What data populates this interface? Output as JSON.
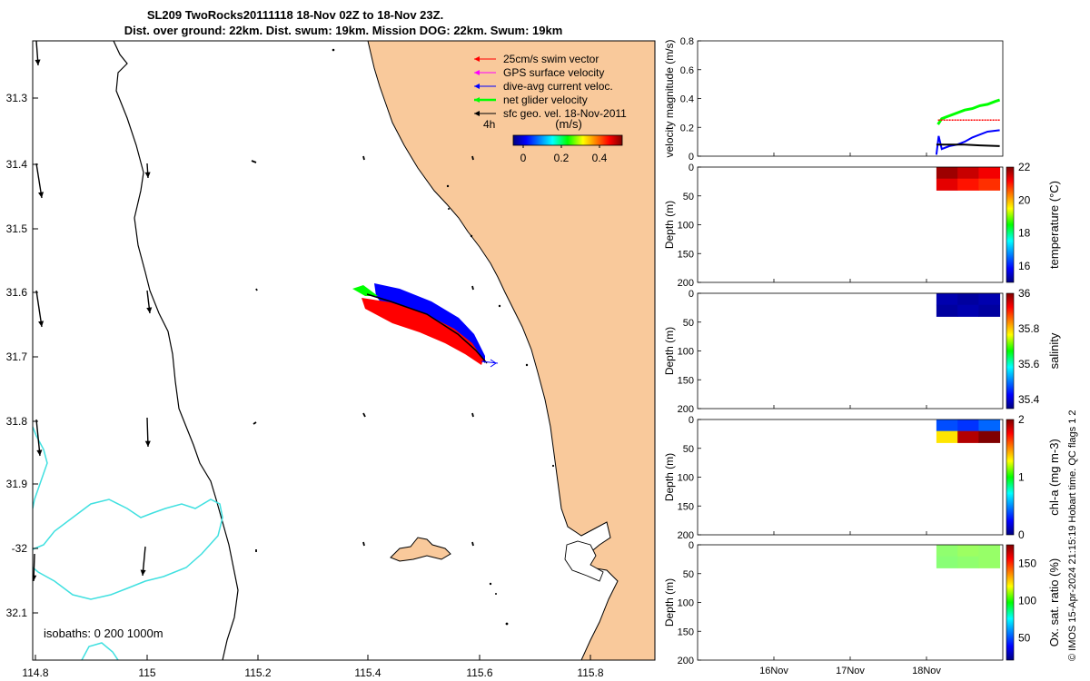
{
  "title": {
    "line1": "SL209 TwoRocks20111118 18-Nov 02Z to 18-Nov 23Z.",
    "line2": "Dist. over ground: 22km. Dist. swum: 19km. Mission DOG: 22km. Swum: 19km"
  },
  "map": {
    "lon_ticks": [
      "114.8",
      "115",
      "115.2",
      "115.4",
      "115.6",
      "115.8"
    ],
    "lat_ticks": [
      "31.3",
      "31.4",
      "31.5",
      "31.6",
      "31.7",
      "31.8",
      "31.9",
      "-32",
      "32.1"
    ],
    "legend": [
      {
        "label": "25cm/s swim vector",
        "color": "#ff0000"
      },
      {
        "label": "GPS surface velocity",
        "color": "#ff00ff"
      },
      {
        "label": "dive-avg current veloc.",
        "color": "#0000ff"
      },
      {
        "label": "net glider velocity",
        "color": "#00ff00"
      },
      {
        "label": "sfc geo. vel. 18-Nov-2011",
        "color": "#000000"
      }
    ],
    "colorbar_prefix": "4h",
    "colorbar_label": "(m/s)",
    "colorbar_ticks": [
      "0",
      "0.2",
      "0.4"
    ],
    "isobaths_label": "isobaths: 0   200  1000m",
    "land_color": "#f9c99b",
    "isobath_200_color": "#000000",
    "isobath_1000_color": "#40e0e0"
  },
  "chart_data": [
    {
      "type": "line",
      "ylabel": "velocity magnitude (m/s)",
      "ylim": [
        0,
        0.8
      ],
      "yticks": [
        "0",
        "0.2",
        "0.4",
        "0.6",
        "0.8"
      ],
      "xticks": [
        "16Nov",
        "17Nov",
        "18Nov"
      ],
      "x_days": [
        15,
        16,
        17,
        18,
        19
      ],
      "series": [
        {
          "color": "#00ff00",
          "x": [
            18.15,
            18.2,
            18.3,
            18.4,
            18.5,
            18.6,
            18.7,
            18.8,
            18.9,
            18.96
          ],
          "y": [
            0.22,
            0.26,
            0.28,
            0.3,
            0.32,
            0.33,
            0.35,
            0.36,
            0.38,
            0.39
          ]
        },
        {
          "color": "#ff0000",
          "x": [
            18.15,
            18.96
          ],
          "y": [
            0.25,
            0.25
          ]
        },
        {
          "color": "#0000ff",
          "x": [
            18.13,
            18.16,
            18.2,
            18.3,
            18.4,
            18.5,
            18.6,
            18.7,
            18.8,
            18.96
          ],
          "y": [
            0.01,
            0.14,
            0.05,
            0.07,
            0.08,
            0.1,
            0.13,
            0.15,
            0.17,
            0.18
          ]
        },
        {
          "color": "#000000",
          "x": [
            18.13,
            18.3,
            18.5,
            18.7,
            18.96
          ],
          "y": [
            0.08,
            0.08,
            0.08,
            0.075,
            0.07
          ]
        }
      ]
    },
    {
      "type": "heatmap",
      "ylabel": "Depth (m)",
      "ylim": [
        0,
        200
      ],
      "yticks": [
        "0",
        "50",
        "100",
        "150",
        "200"
      ],
      "cbar_label": "temperature (°C)",
      "cbar_ticks": [
        "16",
        "18",
        "20",
        "22"
      ],
      "crange": [
        15,
        22
      ],
      "values": [
        [
          21.8,
          21.5,
          21.2
        ],
        [
          21.3,
          21.0,
          20.8
        ]
      ],
      "depth_range": [
        0,
        40
      ],
      "time_range": [
        18.13,
        18.96
      ]
    },
    {
      "type": "heatmap",
      "ylabel": "Depth (m)",
      "ylim": [
        0,
        200
      ],
      "yticks": [
        "0",
        "50",
        "100",
        "150",
        "200"
      ],
      "cbar_label": "salinity",
      "cbar_ticks": [
        "35.4",
        "35.6",
        "35.8",
        "36"
      ],
      "crange": [
        35.35,
        36.0
      ],
      "values": [
        [
          35.38,
          35.37,
          35.38
        ],
        [
          35.37,
          35.38,
          35.37
        ]
      ],
      "depth_range": [
        0,
        40
      ],
      "time_range": [
        18.13,
        18.96
      ]
    },
    {
      "type": "heatmap",
      "ylabel": "Depth (m)",
      "ylim": [
        0,
        200
      ],
      "yticks": [
        "0",
        "50",
        "100",
        "150",
        "200"
      ],
      "cbar_label": "chl-a (mg m-3)",
      "cbar_ticks": [
        "0",
        "1",
        "2"
      ],
      "crange": [
        0,
        2
      ],
      "values": [
        [
          0.4,
          0.35,
          0.45
        ],
        [
          1.3,
          1.9,
          2.0
        ]
      ],
      "depth_range": [
        0,
        40
      ],
      "time_range": [
        18.13,
        18.96
      ]
    },
    {
      "type": "heatmap",
      "ylabel": "Depth (m)",
      "ylim": [
        0,
        200
      ],
      "yticks": [
        "0",
        "50",
        "100",
        "150",
        "200"
      ],
      "cbar_label": "Ox. sat. ratio (%)",
      "cbar_ticks": [
        "50",
        "100",
        "150"
      ],
      "crange": [
        20,
        175
      ],
      "values": [
        [
          100,
          102,
          101
        ],
        [
          99,
          100,
          101
        ]
      ],
      "depth_range": [
        0,
        40
      ],
      "time_range": [
        18.13,
        18.96
      ]
    }
  ],
  "footer": "© IMOS 15-Apr-2024 21:15:19 Hobart time. QC flags 1  2"
}
